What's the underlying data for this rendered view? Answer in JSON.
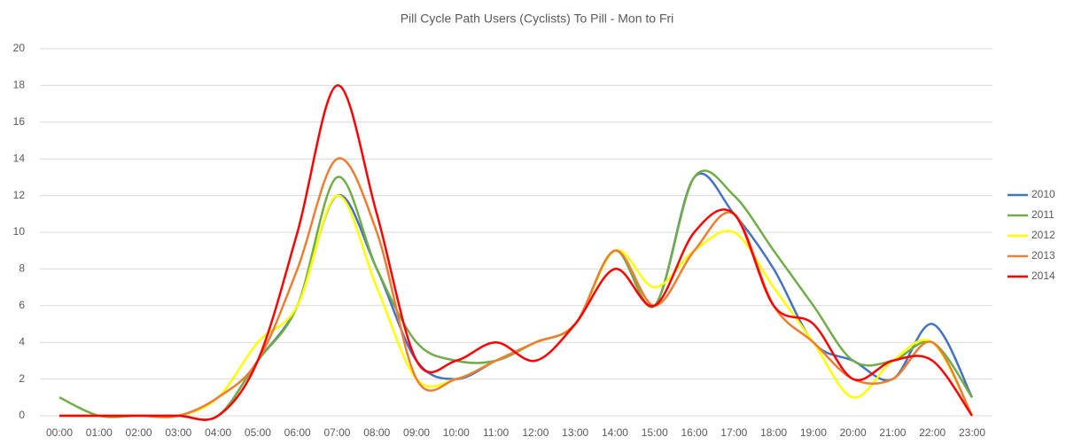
{
  "chart_data": {
    "type": "line",
    "title": "Pill Cycle Path Users (Cyclists) To Pill - Mon to Fri",
    "categories": [
      "00:00",
      "01:00",
      "02:00",
      "03:00",
      "04:00",
      "05:00",
      "06:00",
      "07:00",
      "08:00",
      "09:00",
      "10:00",
      "11:00",
      "12:00",
      "13:00",
      "14:00",
      "15:00",
      "16:00",
      "17:00",
      "18:00",
      "19:00",
      "20:00",
      "21:00",
      "22:00",
      "23:00"
    ],
    "series": [
      {
        "name": "2010",
        "color": "#4472c4",
        "values": [
          0,
          0,
          0,
          0,
          0,
          3,
          6,
          12,
          8,
          3,
          2,
          3,
          4,
          5,
          9,
          6,
          13,
          11,
          8,
          4,
          3,
          2,
          5,
          1
        ]
      },
      {
        "name": "2011",
        "color": "#70ad47",
        "values": [
          1,
          0,
          0,
          0,
          0,
          3,
          6,
          13,
          8,
          4,
          3,
          3,
          4,
          5,
          9,
          6,
          13,
          12,
          9,
          6,
          3,
          3,
          4,
          1
        ]
      },
      {
        "name": "2012",
        "color": "#ffff00",
        "values": [
          0,
          0,
          0,
          0,
          1,
          4,
          6,
          12,
          7,
          2,
          2,
          3,
          4,
          5,
          9,
          7,
          9,
          10,
          7,
          4,
          1,
          3,
          4,
          0
        ]
      },
      {
        "name": "2013",
        "color": "#ed7d31",
        "values": [
          0,
          0,
          0,
          0,
          1,
          3,
          8,
          14,
          10,
          2,
          2,
          3,
          4,
          5,
          9,
          6,
          9,
          11,
          6,
          4,
          2,
          2,
          4,
          0
        ]
      },
      {
        "name": "2014",
        "color": "#ff0000",
        "values": [
          0,
          0,
          0,
          0,
          0,
          3,
          10,
          18,
          11,
          3,
          3,
          4,
          3,
          5,
          8,
          6,
          10,
          11,
          6,
          5,
          2,
          3,
          3,
          0
        ]
      }
    ],
    "ylim": [
      0,
      20
    ],
    "yticks": [
      0,
      2,
      4,
      6,
      8,
      10,
      12,
      14,
      16,
      18,
      20
    ],
    "grid": true,
    "legend": "right"
  }
}
